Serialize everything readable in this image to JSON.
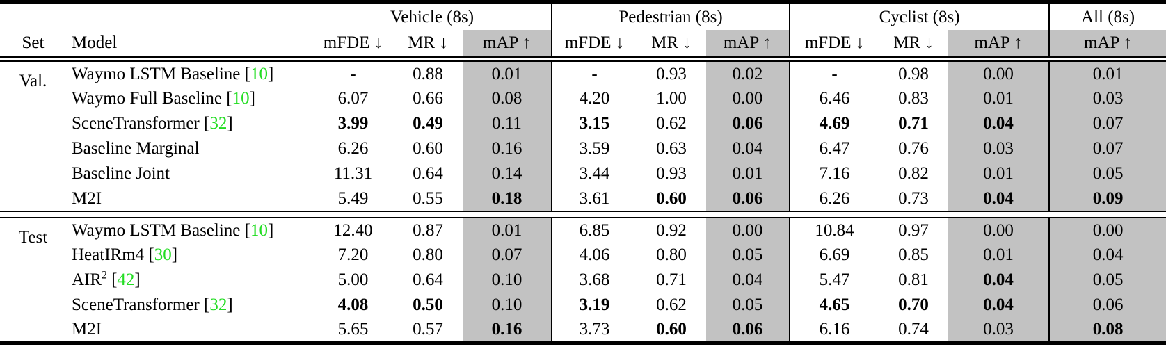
{
  "colors": {
    "citation_green": "#22DD22",
    "map_column_gray": "#C2C2C2",
    "rule_black": "#000000"
  },
  "title_groups": [
    {
      "label": "Vehicle (8s)"
    },
    {
      "label": "Pedestrian (8s)"
    },
    {
      "label": "Cyclist (8s)"
    },
    {
      "label": "All (8s)"
    }
  ],
  "columns": {
    "set": "Set",
    "model": "Model",
    "metric_headers": [
      "mFDE ↓",
      "MR ↓",
      "mAP ↑",
      "mFDE ↓",
      "MR ↓",
      "mAP ↑",
      "mFDE ↓",
      "MR ↓",
      "mAP ↑",
      "mAP ↑"
    ]
  },
  "sections": [
    {
      "set_label": "Val.",
      "rows": [
        {
          "model": "Waymo LSTM Baseline",
          "ref": "10",
          "values": [
            "-",
            "0.88",
            "0.01",
            "-",
            "0.93",
            "0.02",
            "-",
            "0.98",
            "0.00",
            "0.01"
          ],
          "bold": []
        },
        {
          "model": "Waymo Full Baseline",
          "ref": "10",
          "values": [
            "6.07",
            "0.66",
            "0.08",
            "4.20",
            "1.00",
            "0.00",
            "6.46",
            "0.83",
            "0.01",
            "0.03"
          ],
          "bold": []
        },
        {
          "model": "SceneTransformer",
          "ref": "32",
          "values": [
            "3.99",
            "0.49",
            "0.11",
            "3.15",
            "0.62",
            "0.06",
            "4.69",
            "0.71",
            "0.04",
            "0.07"
          ],
          "bold": [
            0,
            1,
            3,
            5,
            6,
            7,
            8
          ]
        },
        {
          "model": "Baseline Marginal",
          "ref": "",
          "values": [
            "6.26",
            "0.60",
            "0.16",
            "3.59",
            "0.63",
            "0.04",
            "6.47",
            "0.76",
            "0.03",
            "0.07"
          ],
          "bold": []
        },
        {
          "model": "Baseline Joint",
          "ref": "",
          "values": [
            "11.31",
            "0.64",
            "0.14",
            "3.44",
            "0.93",
            "0.01",
            "7.16",
            "0.82",
            "0.01",
            "0.05"
          ],
          "bold": []
        },
        {
          "model": "M2I",
          "ref": "",
          "values": [
            "5.49",
            "0.55",
            "0.18",
            "3.61",
            "0.60",
            "0.06",
            "6.26",
            "0.73",
            "0.04",
            "0.09"
          ],
          "bold": [
            2,
            4,
            5,
            8,
            9
          ]
        }
      ]
    },
    {
      "set_label": "Test",
      "rows": [
        {
          "model": "Waymo LSTM Baseline",
          "ref": "10",
          "values": [
            "12.40",
            "0.87",
            "0.01",
            "6.85",
            "0.92",
            "0.00",
            "10.84",
            "0.97",
            "0.00",
            "0.00"
          ],
          "bold": []
        },
        {
          "model": "HeatIRm4",
          "ref": "30",
          "values": [
            "7.20",
            "0.80",
            "0.07",
            "4.06",
            "0.80",
            "0.05",
            "6.69",
            "0.85",
            "0.01",
            "0.04"
          ],
          "bold": []
        },
        {
          "model": "AIR",
          "model_sup": "2",
          "ref": "42",
          "values": [
            "5.00",
            "0.64",
            "0.10",
            "3.68",
            "0.71",
            "0.04",
            "5.47",
            "0.81",
            "0.04",
            "0.05"
          ],
          "bold": [
            8
          ]
        },
        {
          "model": "SceneTransformer",
          "ref": "32",
          "values": [
            "4.08",
            "0.50",
            "0.10",
            "3.19",
            "0.62",
            "0.05",
            "4.65",
            "0.70",
            "0.04",
            "0.06"
          ],
          "bold": [
            0,
            1,
            3,
            6,
            7,
            8
          ]
        },
        {
          "model": "M2I",
          "ref": "",
          "values": [
            "5.65",
            "0.57",
            "0.16",
            "3.73",
            "0.60",
            "0.06",
            "6.16",
            "0.74",
            "0.03",
            "0.08"
          ],
          "bold": [
            2,
            4,
            5,
            9
          ]
        }
      ]
    }
  ]
}
